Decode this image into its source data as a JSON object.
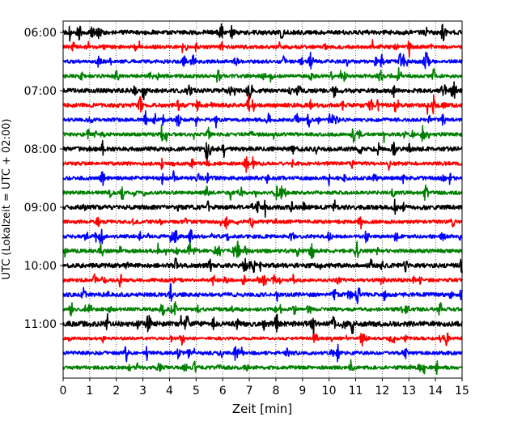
{
  "chart_data": {
    "type": "line",
    "title": "",
    "xlabel": "Zeit  [min]",
    "ylabel": "UTC (Lokalzeit = UTC + 02:00)",
    "xlim": [
      0,
      15
    ],
    "x_ticks": [
      "0",
      "1",
      "2",
      "3",
      "4",
      "5",
      "6",
      "7",
      "8",
      "9",
      "10",
      "11",
      "12",
      "13",
      "14",
      "15"
    ],
    "y_tick_labels": [
      "06:00",
      "07:00",
      "08:00",
      "09:00",
      "10:00",
      "11:00"
    ],
    "grid": "vertical dotted",
    "line_colors": [
      "#000000",
      "#ff0000",
      "#0000ff",
      "#008000"
    ],
    "series": [
      {
        "start": "06:00",
        "color": "#000000",
        "amplitude": 0.15
      },
      {
        "start": "06:15",
        "color": "#ff0000",
        "amplitude": 0.12
      },
      {
        "start": "06:30",
        "color": "#0000ff",
        "amplitude": 0.12
      },
      {
        "start": "06:45",
        "color": "#008000",
        "amplitude": 0.12
      },
      {
        "start": "07:00",
        "color": "#000000",
        "amplitude": 0.15
      },
      {
        "start": "07:15",
        "color": "#ff0000",
        "amplitude": 0.14
      },
      {
        "start": "07:30",
        "color": "#0000ff",
        "amplitude": 0.12
      },
      {
        "start": "07:45",
        "color": "#008000",
        "amplitude": 0.12
      },
      {
        "start": "08:00",
        "color": "#000000",
        "amplitude": 0.15
      },
      {
        "start": "08:15",
        "color": "#ff0000",
        "amplitude": 0.12
      },
      {
        "start": "08:30",
        "color": "#0000ff",
        "amplitude": 0.13
      },
      {
        "start": "08:45",
        "color": "#008000",
        "amplitude": 0.12
      },
      {
        "start": "09:00",
        "color": "#000000",
        "amplitude": 0.15
      },
      {
        "start": "09:15",
        "color": "#ff0000",
        "amplitude": 0.12
      },
      {
        "start": "09:30",
        "color": "#0000ff",
        "amplitude": 0.12
      },
      {
        "start": "09:45",
        "color": "#008000",
        "amplitude": 0.13
      },
      {
        "start": "10:00",
        "color": "#000000",
        "amplitude": 0.15
      },
      {
        "start": "10:15",
        "color": "#ff0000",
        "amplitude": 0.12
      },
      {
        "start": "10:30",
        "color": "#0000ff",
        "amplitude": 0.14
      },
      {
        "start": "10:45",
        "color": "#008000",
        "amplitude": 0.12
      },
      {
        "start": "11:00",
        "color": "#000000",
        "amplitude": 0.18
      },
      {
        "start": "11:15",
        "color": "#ff0000",
        "amplitude": 0.1
      },
      {
        "start": "11:30",
        "color": "#0000ff",
        "amplitude": 0.12
      },
      {
        "start": "11:45",
        "color": "#008000",
        "amplitude": 0.12
      }
    ]
  }
}
